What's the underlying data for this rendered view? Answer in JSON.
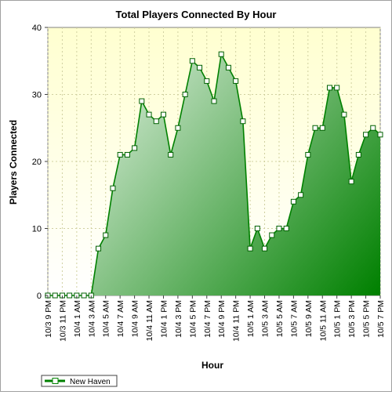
{
  "chart_data": {
    "type": "area",
    "title": "Total Players Connected By Hour",
    "xlabel": "Hour",
    "ylabel": "Players Connected",
    "ylim": [
      0,
      40
    ],
    "y_ticks": [
      0,
      10,
      20,
      30,
      40
    ],
    "grid": true,
    "legend_position": "bottom-left",
    "tick_labels": [
      "10/3 9 PM",
      "10/3 11 PM",
      "10/4 1 AM",
      "10/4 3 AM",
      "10/4 5 AM",
      "10/4 7 AM",
      "10/4 9 AM",
      "10/4 11 AM",
      "10/4 1 PM",
      "10/4 3 PM",
      "10/4 5 PM",
      "10/4 7 PM",
      "10/4 9 PM",
      "10/4 11 PM",
      "10/5 1 AM",
      "10/5 3 AM",
      "10/5 5 AM",
      "10/5 7 AM",
      "10/5 9 AM",
      "10/5 11 AM",
      "10/5 1 PM",
      "10/5 3 PM",
      "10/5 5 PM",
      "10/5 7 PM"
    ],
    "series": [
      {
        "name": "New Haven",
        "color": "#008000",
        "values": [
          0,
          0,
          0,
          0,
          0,
          0,
          0,
          7,
          9,
          16,
          21,
          21,
          22,
          29,
          27,
          26,
          27,
          21,
          25,
          30,
          35,
          34,
          32,
          29,
          36,
          34,
          32,
          26,
          7,
          10,
          7,
          9,
          10,
          10,
          14,
          15,
          21,
          25,
          25,
          31,
          31,
          27,
          17,
          21,
          24,
          25,
          24
        ]
      }
    ],
    "colors": {
      "plot_background_top": "#ffffd8",
      "grid": "#d8d8a8",
      "line": "#008000"
    }
  }
}
